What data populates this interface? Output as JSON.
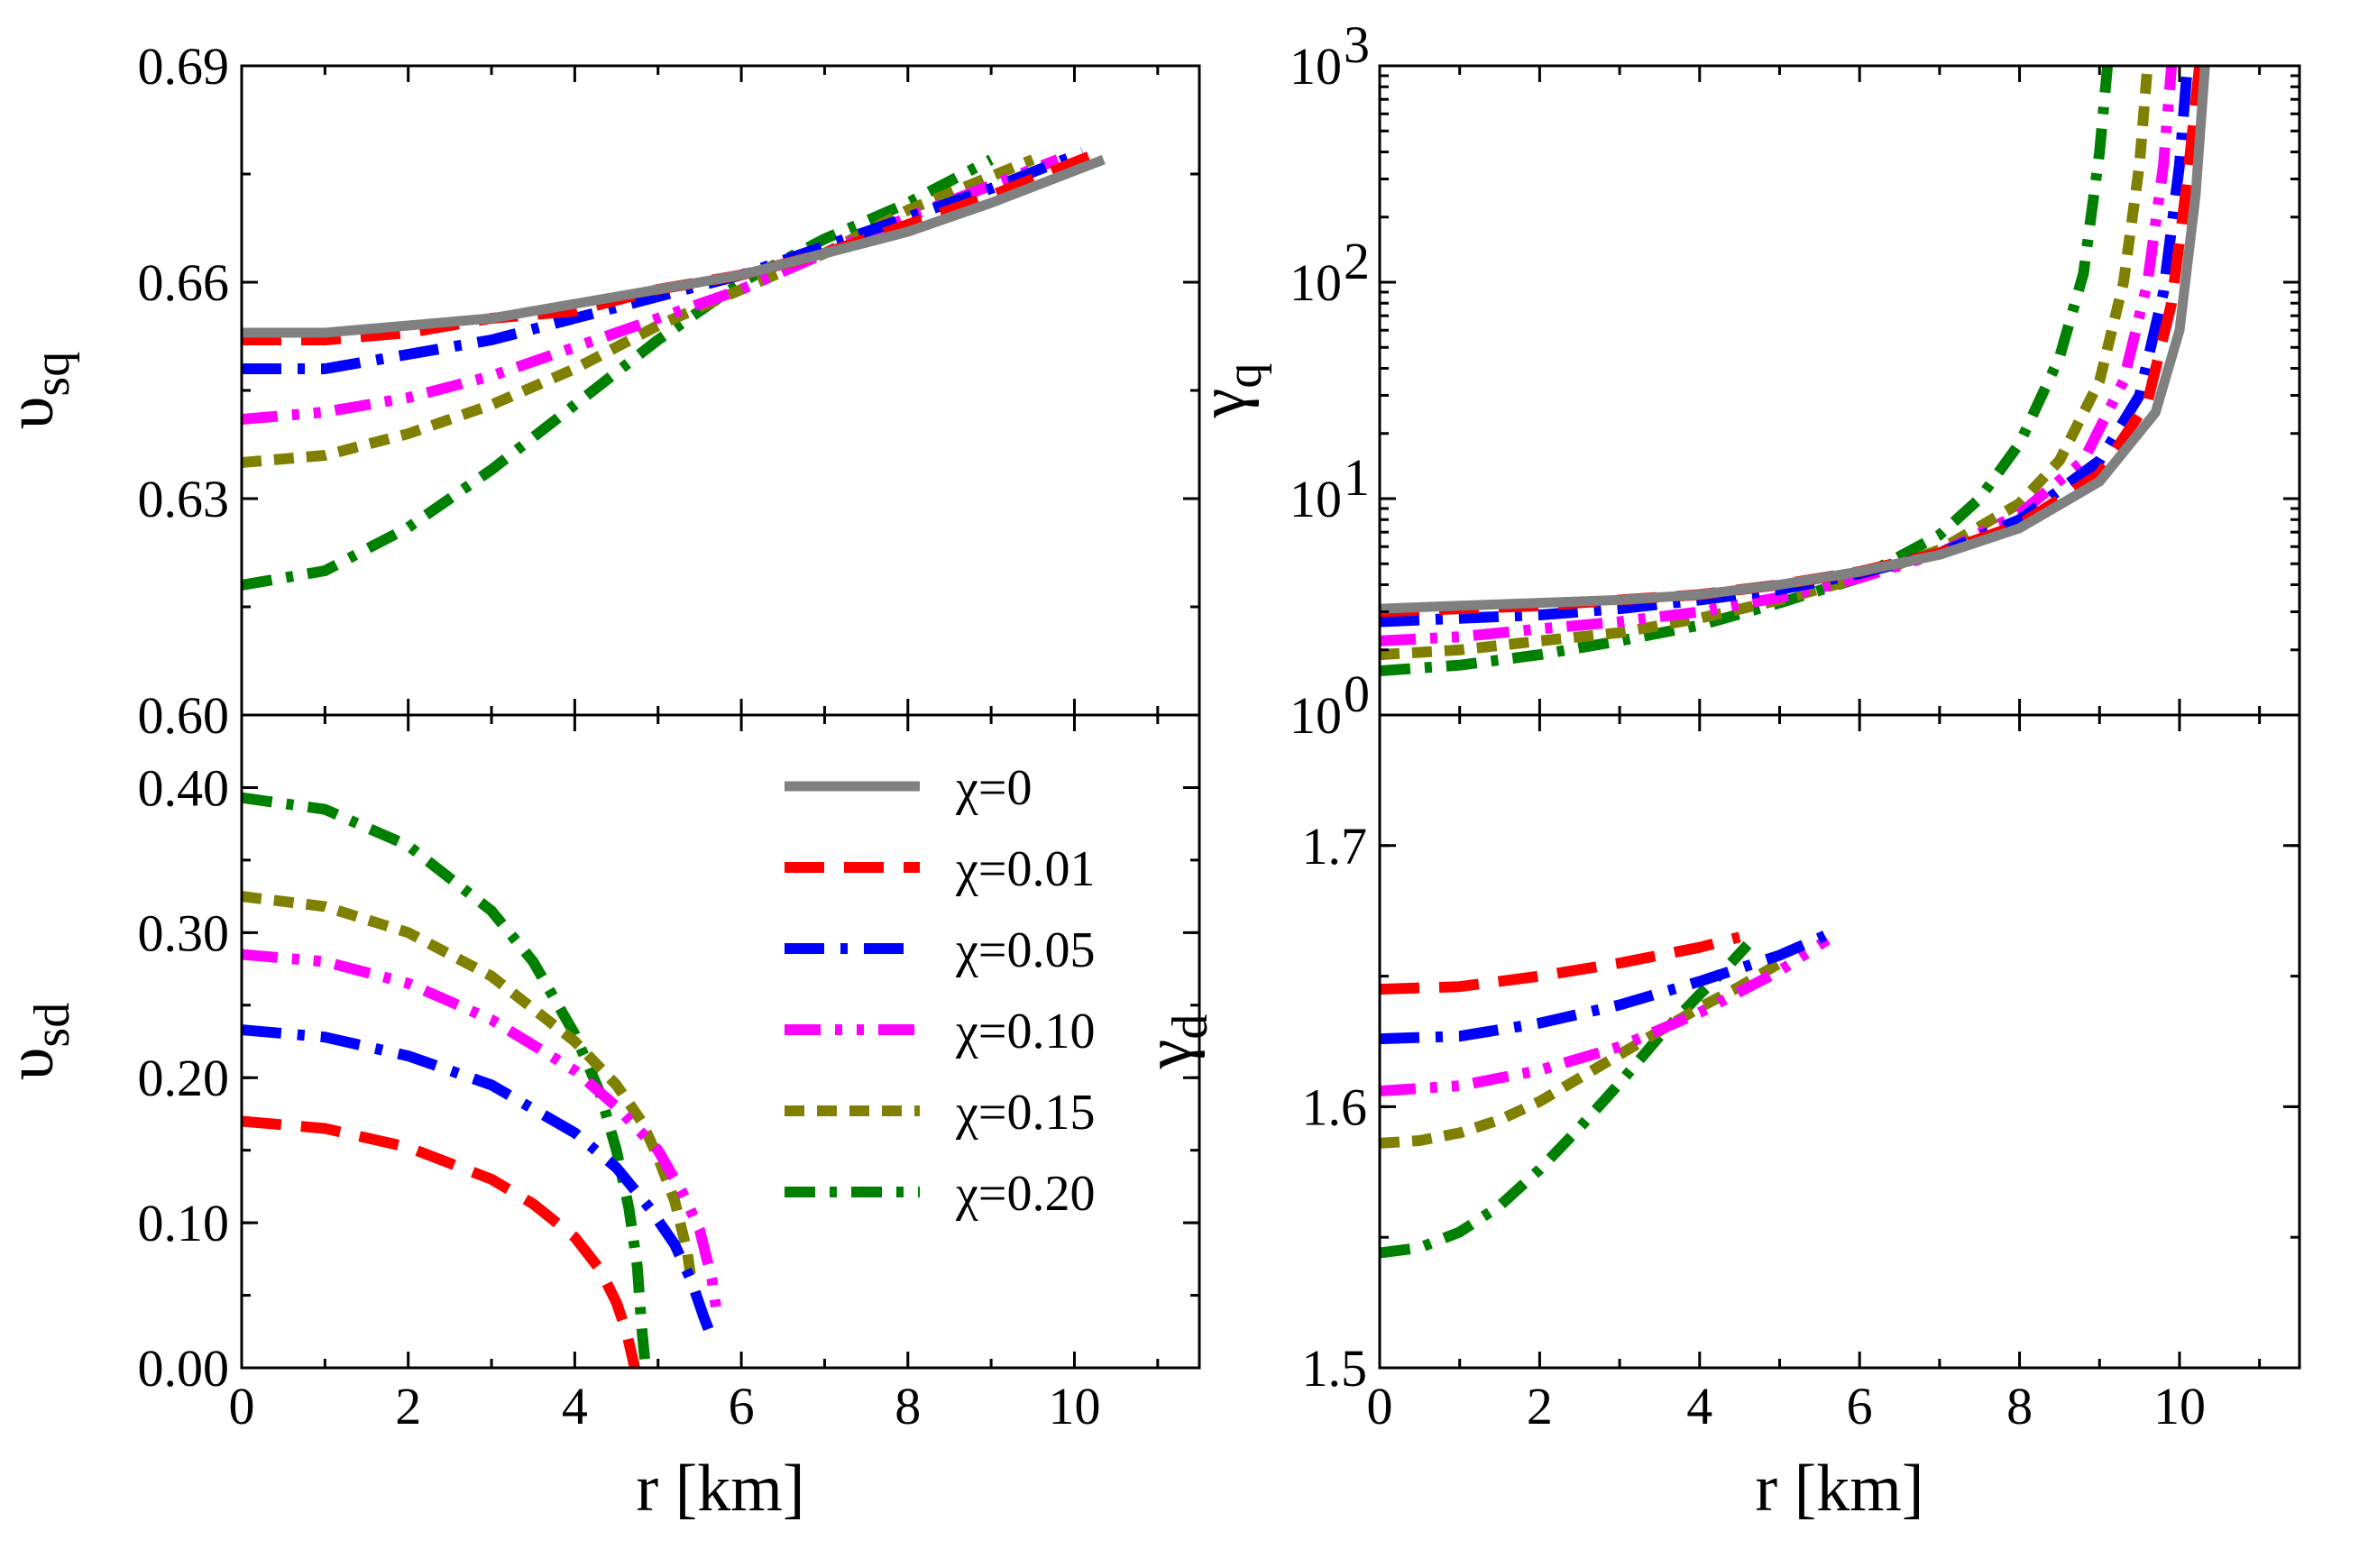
{
  "chart_data": [
    {
      "id": "vsq",
      "type": "line",
      "ylabel_main": "υ",
      "ylabel_sub": "sq",
      "xlabel": "",
      "xlim": [
        0,
        11.5
      ],
      "ylim": [
        0.6,
        0.69
      ],
      "yscale": "linear",
      "xticks": [],
      "xtick_labels": [],
      "yticks": [
        0.6,
        0.63,
        0.66,
        0.69
      ],
      "ytick_labels": [
        "0.60",
        "0.63",
        "0.66",
        "0.69"
      ],
      "series": [
        {
          "name": "χ=0.20",
          "x": [
            0,
            1,
            2,
            3,
            4,
            5,
            6,
            7,
            8,
            9
          ],
          "y": [
            0.618,
            0.62,
            0.626,
            0.634,
            0.643,
            0.652,
            0.66,
            0.666,
            0.671,
            0.677
          ]
        },
        {
          "name": "χ=0.15",
          "x": [
            0,
            1,
            2,
            3,
            4,
            5,
            6,
            7,
            8,
            9.5
          ],
          "y": [
            0.635,
            0.636,
            0.639,
            0.643,
            0.648,
            0.654,
            0.659,
            0.664,
            0.67,
            0.677
          ]
        },
        {
          "name": "χ=0.10",
          "x": [
            0,
            1,
            2,
            3,
            4,
            5,
            6,
            7,
            8,
            9.8
          ],
          "y": [
            0.641,
            0.642,
            0.644,
            0.647,
            0.651,
            0.655,
            0.659,
            0.664,
            0.669,
            0.677
          ]
        },
        {
          "name": "χ=0.05",
          "x": [
            0,
            1,
            2,
            3,
            4,
            5,
            6,
            7,
            8,
            9,
            10.1
          ],
          "y": [
            0.648,
            0.648,
            0.65,
            0.652,
            0.655,
            0.658,
            0.661,
            0.665,
            0.669,
            0.673,
            0.678
          ]
        },
        {
          "name": "χ=0.01",
          "x": [
            0,
            1,
            2,
            3,
            4,
            5,
            6,
            7,
            8,
            9,
            10.3
          ],
          "y": [
            0.652,
            0.652,
            0.653,
            0.655,
            0.656,
            0.659,
            0.661,
            0.664,
            0.668,
            0.672,
            0.678
          ]
        },
        {
          "name": "χ=0",
          "x": [
            0,
            1,
            2,
            3,
            4,
            5,
            6,
            7,
            8,
            9,
            10.35
          ],
          "y": [
            0.653,
            0.653,
            0.654,
            0.655,
            0.657,
            0.659,
            0.661,
            0.664,
            0.667,
            0.671,
            0.677
          ]
        }
      ]
    },
    {
      "id": "gq",
      "type": "line",
      "ylabel_main": "γ",
      "ylabel_sub": "q",
      "xlabel": "",
      "xlim": [
        0,
        11.5
      ],
      "ylim": [
        1,
        1000
      ],
      "yscale": "log",
      "xticks": [],
      "xtick_labels": [],
      "yticks": [
        1,
        10,
        100,
        1000
      ],
      "ytick_labels": [
        "10",
        "10",
        "10",
        "10"
      ],
      "ytick_exponents": [
        "0",
        "1",
        "2",
        "3"
      ],
      "series": [
        {
          "name": "χ=0.20",
          "x": [
            0,
            1,
            2,
            3,
            4,
            5,
            6,
            7,
            7.5,
            8,
            8.5,
            8.8,
            9.0,
            9.1
          ],
          "y": [
            1.6,
            1.7,
            1.9,
            2.2,
            2.6,
            3.3,
            4.3,
            6.8,
            10,
            18,
            45,
            110,
            400,
            1000
          ]
        },
        {
          "name": "χ=0.15",
          "x": [
            0,
            1,
            2,
            3,
            4,
            5,
            6,
            7,
            8,
            8.5,
            9,
            9.3,
            9.5,
            9.6
          ],
          "y": [
            1.9,
            2.0,
            2.2,
            2.4,
            2.8,
            3.4,
            4.3,
            5.8,
            9.5,
            15,
            35,
            100,
            350,
            1000
          ]
        },
        {
          "name": "χ=0.10",
          "x": [
            0,
            1,
            2,
            3,
            4,
            5,
            6,
            7,
            8,
            8.8,
            9.3,
            9.6,
            9.8,
            9.9
          ],
          "y": [
            2.2,
            2.3,
            2.5,
            2.7,
            3.0,
            3.5,
            4.3,
            5.6,
            8.5,
            15,
            35,
            100,
            350,
            1000
          ]
        },
        {
          "name": "χ=0.05",
          "x": [
            0,
            1,
            2,
            3,
            4,
            5,
            6,
            7,
            8,
            9,
            9.5,
            9.8,
            10.0,
            10.1
          ],
          "y": [
            2.7,
            2.8,
            2.9,
            3.1,
            3.4,
            3.8,
            4.5,
            5.6,
            8.0,
            15,
            30,
            90,
            350,
            1000
          ]
        },
        {
          "name": "χ=0.01",
          "x": [
            0,
            1,
            2,
            3,
            4,
            5,
            6,
            7,
            8,
            9,
            9.6,
            9.9,
            10.1,
            10.25
          ],
          "y": [
            3.0,
            3.1,
            3.2,
            3.4,
            3.6,
            4.0,
            4.6,
            5.6,
            7.6,
            13,
            28,
            80,
            300,
            1000
          ]
        },
        {
          "name": "χ=0",
          "x": [
            0,
            1,
            2,
            3,
            4,
            5,
            6,
            7,
            8,
            9,
            9.7,
            10.0,
            10.2,
            10.32
          ],
          "y": [
            3.1,
            3.2,
            3.3,
            3.4,
            3.6,
            4.0,
            4.6,
            5.5,
            7.3,
            12,
            25,
            60,
            250,
            1000
          ]
        }
      ]
    },
    {
      "id": "vsd",
      "type": "line",
      "ylabel_main": "υ",
      "ylabel_sub": "sd",
      "xlabel": "r [km]",
      "xlim": [
        0,
        11.5
      ],
      "ylim": [
        0.0,
        0.45
      ],
      "yscale": "linear",
      "xticks": [
        0,
        2,
        4,
        6,
        8,
        10
      ],
      "xtick_labels": [
        "0",
        "2",
        "4",
        "6",
        "8",
        "10"
      ],
      "yticks": [
        0.0,
        0.1,
        0.2,
        0.3,
        0.4
      ],
      "ytick_labels": [
        "0.00",
        "0.10",
        "0.20",
        "0.30",
        "0.40"
      ],
      "series": [
        {
          "name": "χ=0.20",
          "x": [
            0,
            1,
            2,
            3,
            3.5,
            4,
            4.3,
            4.5,
            4.65,
            4.75,
            4.8,
            4.85
          ],
          "y": [
            0.393,
            0.385,
            0.36,
            0.315,
            0.28,
            0.23,
            0.19,
            0.15,
            0.11,
            0.07,
            0.03,
            0.0
          ]
        },
        {
          "name": "χ=0.15",
          "x": [
            0,
            1,
            2,
            3,
            4,
            4.5,
            4.8,
            5.0,
            5.2,
            5.35,
            5.4
          ],
          "y": [
            0.325,
            0.318,
            0.3,
            0.27,
            0.225,
            0.195,
            0.17,
            0.145,
            0.115,
            0.08,
            0.06
          ]
        },
        {
          "name": "χ=0.10",
          "x": [
            0,
            1,
            2,
            3,
            4,
            4.5,
            5.0,
            5.3,
            5.5,
            5.65,
            5.7
          ],
          "y": [
            0.285,
            0.28,
            0.265,
            0.24,
            0.205,
            0.18,
            0.15,
            0.12,
            0.095,
            0.06,
            0.04
          ]
        },
        {
          "name": "χ=0.05",
          "x": [
            0,
            1,
            2,
            3,
            4,
            4.5,
            4.9,
            5.2,
            5.4,
            5.55,
            5.65
          ],
          "y": [
            0.233,
            0.228,
            0.215,
            0.195,
            0.162,
            0.138,
            0.11,
            0.085,
            0.06,
            0.035,
            0.02
          ]
        },
        {
          "name": "χ=0.01",
          "x": [
            0,
            1,
            2,
            3,
            3.5,
            4.0,
            4.3,
            4.5,
            4.62,
            4.72
          ],
          "y": [
            0.17,
            0.165,
            0.152,
            0.13,
            0.113,
            0.09,
            0.068,
            0.045,
            0.025,
            0.0
          ]
        }
      ]
    },
    {
      "id": "gd",
      "type": "line",
      "ylabel_main": "γ",
      "ylabel_sub": "d",
      "xlabel": "r [km]",
      "xlim": [
        0,
        11.5
      ],
      "ylim": [
        1.5,
        1.75
      ],
      "yscale": "linear",
      "xticks": [
        0,
        2,
        4,
        6,
        8,
        10
      ],
      "xtick_labels": [
        "0",
        "2",
        "4",
        "6",
        "8",
        "10"
      ],
      "yticks": [
        1.5,
        1.6,
        1.7
      ],
      "ytick_labels": [
        "1.5",
        "1.6",
        "1.7"
      ],
      "series": [
        {
          "name": "χ=0.20",
          "x": [
            0,
            0.5,
            1,
            1.5,
            2,
            2.5,
            3,
            3.5,
            4,
            4.3,
            4.6
          ],
          "y": [
            1.544,
            1.546,
            1.552,
            1.562,
            1.576,
            1.592,
            1.609,
            1.627,
            1.643,
            1.652,
            1.662
          ]
        },
        {
          "name": "χ=0.15",
          "x": [
            0,
            0.5,
            1,
            1.5,
            2,
            2.5,
            3,
            3.5,
            4,
            4.5,
            5
          ],
          "y": [
            1.586,
            1.587,
            1.59,
            1.595,
            1.602,
            1.611,
            1.62,
            1.629,
            1.638,
            1.646,
            1.655
          ]
        },
        {
          "name": "χ=0.10",
          "x": [
            0,
            1,
            2,
            3,
            4,
            5,
            5.6
          ],
          "y": [
            1.606,
            1.608,
            1.614,
            1.623,
            1.636,
            1.652,
            1.664
          ]
        },
        {
          "name": "χ=0.05",
          "x": [
            0,
            1,
            2,
            3,
            4,
            5,
            5.6
          ],
          "y": [
            1.626,
            1.627,
            1.632,
            1.639,
            1.648,
            1.658,
            1.666
          ]
        },
        {
          "name": "χ=0.01",
          "x": [
            0,
            1,
            2,
            3,
            4,
            4.5
          ],
          "y": [
            1.645,
            1.646,
            1.65,
            1.655,
            1.661,
            1.665
          ]
        }
      ]
    }
  ],
  "legend": {
    "placement": "bottom-left panel, upper-right",
    "entries": [
      {
        "label": "χ=0",
        "color": "#808080",
        "style": "solid"
      },
      {
        "label": "χ=0.01",
        "color": "#ff0000",
        "style": "dash"
      },
      {
        "label": "χ=0.05",
        "color": "#0000ff",
        "style": "dashdot"
      },
      {
        "label": "χ=0.10",
        "color": "#ff00ff",
        "style": "dashdotdot"
      },
      {
        "label": "χ=0.15",
        "color": "#808000",
        "style": "shortdash"
      },
      {
        "label": "χ=0.20",
        "color": "#008000",
        "style": "dashdot2"
      }
    ]
  }
}
